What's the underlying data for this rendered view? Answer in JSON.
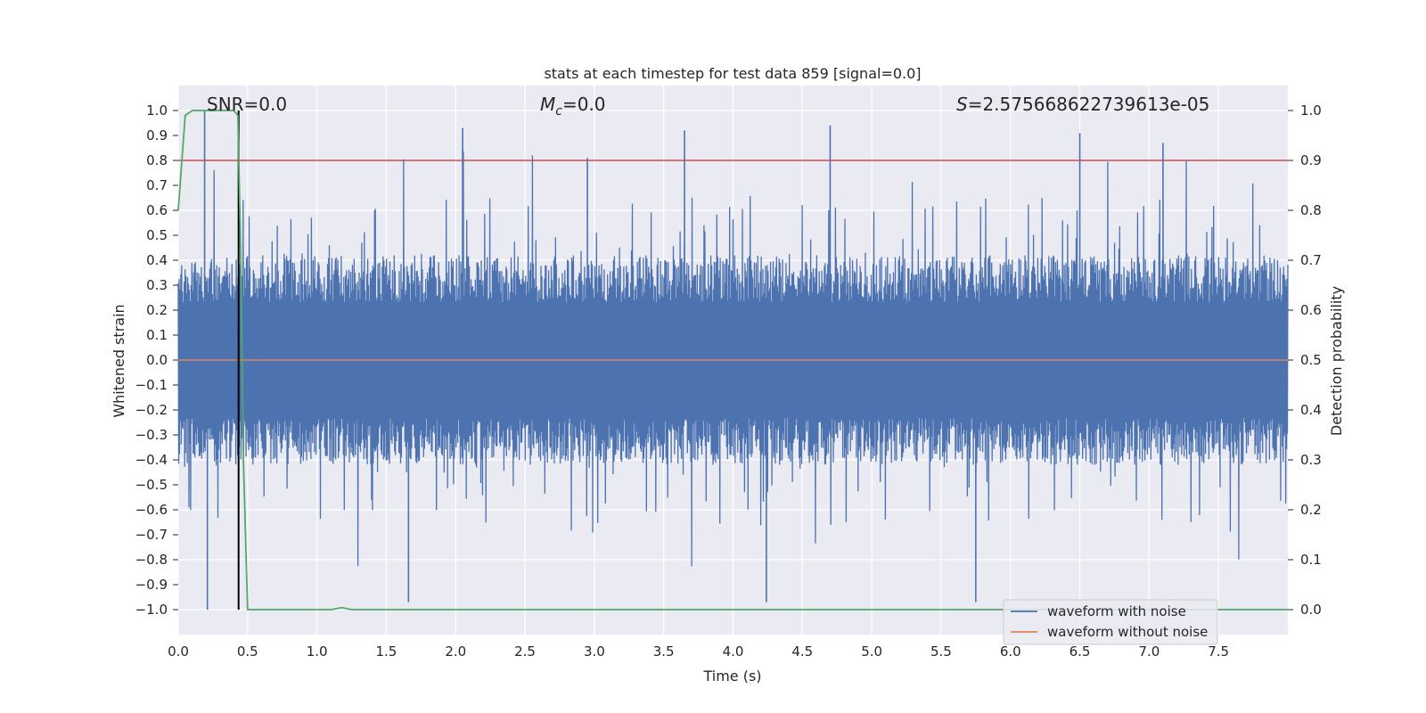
{
  "chart_data": {
    "type": "line",
    "title": "stats at each timestep for test data 859 [signal=0.0]",
    "xlabel": "Time (s)",
    "ylabel": "Whitened strain",
    "ylabel_right": "Detection probability",
    "xlim": [
      0.0,
      8.0
    ],
    "ylim": [
      -1.1,
      1.1
    ],
    "ylim_right": [
      -0.05,
      1.05
    ],
    "x_ticks": [
      "0.0",
      "0.5",
      "1.0",
      "1.5",
      "2.0",
      "2.5",
      "3.0",
      "3.5",
      "4.0",
      "4.5",
      "5.0",
      "5.5",
      "6.0",
      "6.5",
      "7.0",
      "7.5"
    ],
    "y_ticks": [
      "1.0",
      "0.9",
      "0.8",
      "0.7",
      "0.6",
      "0.5",
      "0.4",
      "0.3",
      "0.2",
      "0.1",
      "0.0",
      "−0.1",
      "−0.2",
      "−0.3",
      "−0.4",
      "−0.5",
      "−0.6",
      "−0.7",
      "−0.8",
      "−0.9",
      "−1.0"
    ],
    "y_ticks_right": [
      "1.0",
      "0.9",
      "0.8",
      "0.7",
      "0.6",
      "0.5",
      "0.4",
      "0.3",
      "0.2",
      "0.1",
      "0.0"
    ],
    "annotations": {
      "snr": "SNR=0.0",
      "mc_symbol": "M",
      "mc_subscript": "c",
      "mc_value": "=0.0",
      "s_symbol": "S",
      "s_value": "=2.575668622739613e-05"
    },
    "series": [
      {
        "name": "waveform with noise",
        "axis": "left",
        "color": "#4c72b0",
        "style": "dense noise",
        "amplitude_envelope": {
          "x": [
            0.0,
            0.5,
            1.0,
            1.5,
            2.0,
            2.5,
            3.0,
            3.5,
            4.0,
            4.5,
            5.0,
            5.5,
            6.0,
            6.5,
            7.0,
            7.5,
            8.0
          ],
          "typical_abs_max": 0.42,
          "peak_max": 1.0,
          "peak_min": -1.0
        },
        "notable_peaks": [
          {
            "x": 0.19,
            "y": 1.0
          },
          {
            "x": 0.21,
            "y": -1.0
          },
          {
            "x": 2.05,
            "y": 0.93
          },
          {
            "x": 2.95,
            "y": 0.81
          },
          {
            "x": 3.65,
            "y": 0.92
          },
          {
            "x": 4.7,
            "y": 0.94
          },
          {
            "x": 5.75,
            "y": -0.97
          },
          {
            "x": 1.66,
            "y": -0.97
          },
          {
            "x": 4.24,
            "y": -0.97
          },
          {
            "x": 6.5,
            "y": 0.91
          },
          {
            "x": 7.1,
            "y": 0.87
          }
        ]
      },
      {
        "name": "waveform without noise",
        "axis": "left",
        "color": "#dd8452",
        "x": [
          0.0,
          8.0
        ],
        "y": [
          0.0,
          0.0
        ]
      },
      {
        "name": "detection probability",
        "axis": "right",
        "color": "#55a868",
        "x": [
          0.0,
          0.05,
          0.1,
          0.15,
          0.2,
          0.3,
          0.4,
          0.43,
          0.45,
          0.47,
          0.5,
          1.1,
          1.18,
          1.25,
          1.3,
          8.0
        ],
        "y": [
          0.8,
          0.99,
          1.0,
          1.0,
          1.0,
          1.0,
          1.0,
          0.99,
          0.72,
          0.3,
          0.0,
          0.0,
          0.004,
          0.0,
          0.0,
          0.0
        ]
      }
    ],
    "threshold_line": {
      "axis": "right",
      "y": 0.9,
      "color": "#c44e52"
    },
    "vertical_marker": {
      "x": 0.435,
      "y_range": [
        -1.0,
        1.0
      ],
      "color": "#000000"
    },
    "legend": {
      "location": "lower right",
      "entries": [
        {
          "label": "waveform with noise",
          "color": "#4c72b0"
        },
        {
          "label": "waveform without noise",
          "color": "#dd8452"
        }
      ]
    },
    "style": {
      "background": "#eaeaf2",
      "grid": true,
      "grid_color": "#ffffff"
    }
  }
}
